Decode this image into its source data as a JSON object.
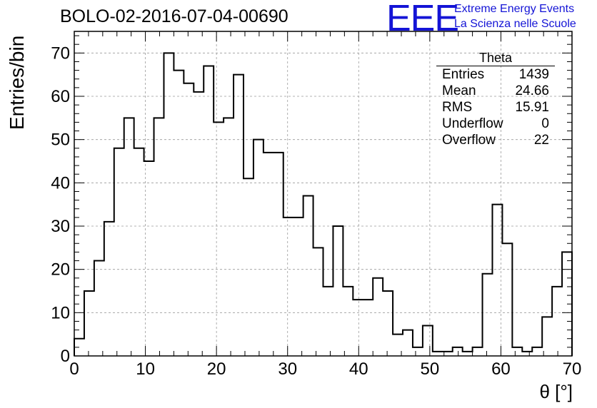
{
  "header": {
    "title": "BOLO-02-2016-07-04-00690",
    "logo": "EEE",
    "logo_line1": "Extreme Energy Events",
    "logo_line2": "La Scienza nelle Scuole"
  },
  "stats_box": {
    "title": "Theta",
    "rows": [
      {
        "label": "Entries",
        "value": "1439"
      },
      {
        "label": "Mean",
        "value": "24.66"
      },
      {
        "label": "RMS",
        "value": "15.91"
      },
      {
        "label": "Underflow",
        "value": "0"
      },
      {
        "label": "Overflow",
        "value": "22"
      }
    ]
  },
  "chart_data": {
    "type": "bar",
    "title": "BOLO-02-2016-07-04-00690",
    "xlabel": "θ [°]",
    "ylabel": "Entries/bin",
    "xlim": [
      0,
      70
    ],
    "ylim": [
      0,
      75
    ],
    "bin_width": 1.4,
    "grid": true,
    "x_ticks": [
      0,
      10,
      20,
      30,
      40,
      50,
      60,
      70
    ],
    "y_ticks": [
      0,
      10,
      20,
      30,
      40,
      50,
      60,
      70
    ],
    "bin_edges_start": 0,
    "values": [
      4,
      15,
      22,
      31,
      48,
      55,
      48,
      45,
      55,
      70,
      66,
      63,
      61,
      67,
      54,
      55,
      65,
      41,
      50,
      47,
      47,
      32,
      32,
      37,
      25,
      16,
      30,
      16,
      13,
      13,
      18,
      15,
      5,
      6,
      2,
      7,
      1,
      1,
      2,
      1,
      2,
      19,
      35,
      26,
      2,
      1,
      2,
      9,
      16,
      24
    ],
    "line_color": "#000000"
  }
}
